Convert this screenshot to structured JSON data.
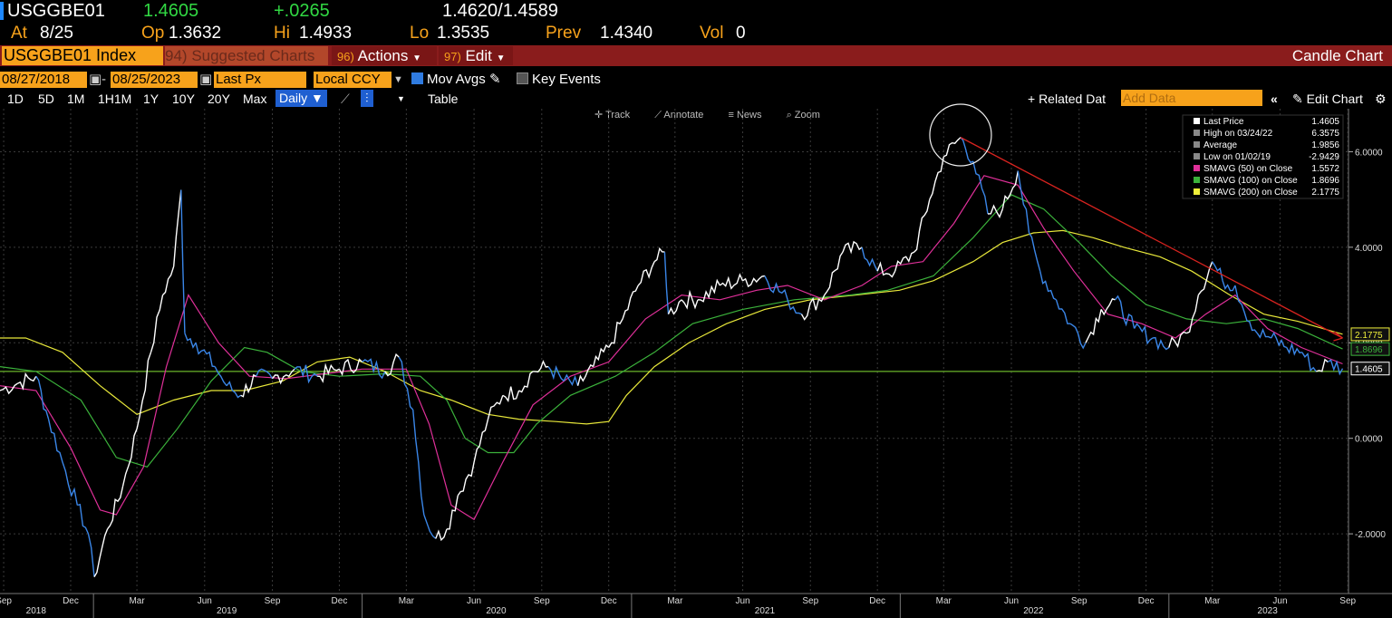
{
  "header": {
    "ticker": "USGGBE01",
    "last": "1.4605",
    "change": "+.0265",
    "bid_ask": "1.4620/1.4589",
    "at_label": "At",
    "at_value": "8/25",
    "open_label": "Op",
    "open_value": "1.3632",
    "high_label": "Hi",
    "high_value": "1.4933",
    "low_label": "Lo",
    "low_value": "1.3535",
    "prev_label": "Prev",
    "prev_value": "1.4340",
    "vol_label": "Vol",
    "vol_value": "0"
  },
  "toolbar": {
    "index_name": "USGGBE01 Index",
    "suggested_num": "94)",
    "suggested_label": "Suggested Charts",
    "actions_num": "96)",
    "actions_label": "Actions",
    "edit_num": "97)",
    "edit_label": "Edit",
    "chart_type_label": "Candle Chart"
  },
  "controls": {
    "start_date": "08/27/2018",
    "end_date": "08/25/2023",
    "separator": "-",
    "field": "Last Px",
    "currency": "Local CCY",
    "mov_avgs": "Mov Avgs",
    "key_events": "Key Events"
  },
  "ranges": {
    "items": [
      "1D",
      "5D",
      "1M",
      "1H1M",
      "1Y",
      "10Y",
      "20Y",
      "Max"
    ],
    "frequency": "Daily",
    "table": "Table",
    "related": "+ Related Dat",
    "add_data_placeholder": "Add Data",
    "edit_chart": "Edit Chart"
  },
  "chart_tools": {
    "track": "Track",
    "annotate": "Annotate",
    "news": "News",
    "zoom": "Zoom"
  },
  "legend": [
    {
      "label": "Last Price",
      "value": "1.4605",
      "color": "#ffffff"
    },
    {
      "label": "High on 03/24/22",
      "value": "6.3575",
      "color": "#888888"
    },
    {
      "label": "Average",
      "value": "1.9856",
      "color": "#888888"
    },
    {
      "label": "Low on 01/02/19",
      "value": "-2.9429",
      "color": "#888888"
    },
    {
      "label": "SMAVG (50)  on Close",
      "value": "1.5572",
      "color": "#e0309a"
    },
    {
      "label": "SMAVG (100)  on Close",
      "value": "1.8696",
      "color": "#3bb23b"
    },
    {
      "label": "SMAVG (200)  on Close",
      "value": "2.1775",
      "color": "#f0f03a"
    }
  ],
  "colors": {
    "price": "#ffffff",
    "price_down": "#3a86e8",
    "sma50": "#e0309a",
    "sma100": "#3bb23b",
    "sma200": "#e8e83a",
    "trendline": "#d8231f",
    "hline": "#6ab42a",
    "grid": "#3a3a3a",
    "toolbar_red": "#8a1c1c",
    "accent_orange": "#f7a21b"
  },
  "chart_data": {
    "type": "line",
    "title": "USGGBE01 Index",
    "y_ticks": [
      "6.0000",
      "4.0000",
      "2.0000",
      "0.0000",
      "-2.0000"
    ],
    "y_tick_values": [
      6,
      4,
      2,
      0,
      -2
    ],
    "ylim": [
      -3.25,
      6.9
    ],
    "xlim": [
      "2018-08-27",
      "2023-09-02"
    ],
    "x_months": [
      "Sep",
      "Dec",
      "Mar",
      "Jun",
      "Sep",
      "Dec",
      "Mar",
      "Jun",
      "Sep",
      "Dec",
      "Mar",
      "Jun",
      "Sep",
      "Dec",
      "Mar",
      "Jun",
      "Sep",
      "Dec",
      "Mar",
      "Jun",
      "Sep"
    ],
    "x_month_dates": [
      "2018-09-01",
      "2018-12-01",
      "2019-03-01",
      "2019-06-01",
      "2019-09-01",
      "2019-12-01",
      "2020-03-01",
      "2020-06-01",
      "2020-09-01",
      "2020-12-01",
      "2021-03-01",
      "2021-06-01",
      "2021-09-01",
      "2021-12-01",
      "2022-03-01",
      "2022-06-01",
      "2022-09-01",
      "2022-12-01",
      "2023-03-01",
      "2023-06-01",
      "2023-09-01"
    ],
    "x_years": [
      "2018",
      "2019",
      "2020",
      "2021",
      "2022",
      "2023"
    ],
    "x_year_dates": [
      "2018-10-15",
      "2019-07-01",
      "2020-07-01",
      "2021-07-01",
      "2022-07-01",
      "2023-05-15"
    ],
    "value_labels": [
      {
        "text": "2.1775",
        "value": 2.1775,
        "color": "#f0f03a"
      },
      {
        "text": "1.8696",
        "value": 1.8696,
        "color": "#3bb23b"
      },
      {
        "text": "1.4605",
        "value": 1.4605,
        "color": "#ffffff"
      }
    ],
    "horizontal_line": 1.4,
    "trendline": [
      [
        "2022-03-24",
        6.3
      ],
      [
        "2023-08-25",
        2.1
      ]
    ],
    "highlight_circle": [
      "2022-03-24",
      6.35
    ],
    "series": [
      {
        "name": "Last Price",
        "points": [
          [
            "2018-08-27",
            1.0
          ],
          [
            "2018-09-20",
            1.15
          ],
          [
            "2018-10-15",
            1.3
          ],
          [
            "2018-11-01",
            0.4
          ],
          [
            "2018-11-20",
            -0.5
          ],
          [
            "2018-12-10",
            -1.4
          ],
          [
            "2018-12-25",
            -2.0
          ],
          [
            "2019-01-02",
            -2.9
          ],
          [
            "2019-01-20",
            -1.9
          ],
          [
            "2019-02-10",
            -1.0
          ],
          [
            "2019-03-01",
            0.2
          ],
          [
            "2019-03-20",
            1.8
          ],
          [
            "2019-04-05",
            3.0
          ],
          [
            "2019-04-20",
            3.6
          ],
          [
            "2019-04-30",
            5.2
          ],
          [
            "2019-05-05",
            2.2
          ],
          [
            "2019-05-20",
            2.0
          ],
          [
            "2019-06-15",
            1.5
          ],
          [
            "2019-07-01",
            1.1
          ],
          [
            "2019-07-20",
            0.9
          ],
          [
            "2019-08-10",
            1.3
          ],
          [
            "2019-09-01",
            1.25
          ],
          [
            "2019-10-01",
            1.45
          ],
          [
            "2019-11-01",
            1.3
          ],
          [
            "2019-12-01",
            1.45
          ],
          [
            "2020-01-01",
            1.6
          ],
          [
            "2020-02-01",
            1.4
          ],
          [
            "2020-02-20",
            1.7
          ],
          [
            "2020-03-10",
            0.6
          ],
          [
            "2020-03-25",
            -1.6
          ],
          [
            "2020-04-10",
            -2.1
          ],
          [
            "2020-04-25",
            -1.9
          ],
          [
            "2020-05-10",
            -1.2
          ],
          [
            "2020-06-01",
            -0.5
          ],
          [
            "2020-06-20",
            0.4
          ],
          [
            "2020-07-10",
            0.9
          ],
          [
            "2020-08-01",
            1.0
          ],
          [
            "2020-08-20",
            1.4
          ],
          [
            "2020-09-10",
            1.5
          ],
          [
            "2020-10-01",
            1.2
          ],
          [
            "2020-10-20",
            1.1
          ],
          [
            "2020-11-10",
            1.5
          ],
          [
            "2020-12-01",
            1.9
          ],
          [
            "2020-12-20",
            2.5
          ],
          [
            "2021-01-10",
            3.2
          ],
          [
            "2021-02-01",
            3.7
          ],
          [
            "2021-02-15",
            3.9
          ],
          [
            "2021-02-20",
            2.6
          ],
          [
            "2021-03-10",
            2.9
          ],
          [
            "2021-04-01",
            2.9
          ],
          [
            "2021-05-01",
            3.2
          ],
          [
            "2021-06-01",
            3.3
          ],
          [
            "2021-07-01",
            3.4
          ],
          [
            "2021-08-01",
            2.9
          ],
          [
            "2021-08-20",
            2.6
          ],
          [
            "2021-09-20",
            3.0
          ],
          [
            "2021-10-15",
            3.9
          ],
          [
            "2021-11-10",
            4.0
          ],
          [
            "2021-12-01",
            3.5
          ],
          [
            "2021-12-25",
            3.5
          ],
          [
            "2022-01-20",
            3.9
          ],
          [
            "2022-02-10",
            5.0
          ],
          [
            "2022-03-01",
            5.9
          ],
          [
            "2022-03-24",
            6.3
          ],
          [
            "2022-04-10",
            5.8
          ],
          [
            "2022-04-30",
            4.7
          ],
          [
            "2022-05-20",
            4.8
          ],
          [
            "2022-06-10",
            5.6
          ],
          [
            "2022-06-25",
            4.3
          ],
          [
            "2022-07-10",
            3.5
          ],
          [
            "2022-08-01",
            2.9
          ],
          [
            "2022-08-20",
            2.4
          ],
          [
            "2022-09-10",
            2.0
          ],
          [
            "2022-10-01",
            2.7
          ],
          [
            "2022-10-20",
            2.9
          ],
          [
            "2022-11-15",
            2.3
          ],
          [
            "2022-12-10",
            2.1
          ],
          [
            "2023-01-01",
            1.9
          ],
          [
            "2023-01-25",
            2.2
          ],
          [
            "2023-02-10",
            3.0
          ],
          [
            "2023-03-01",
            3.7
          ],
          [
            "2023-03-15",
            3.3
          ],
          [
            "2023-04-01",
            3.2
          ],
          [
            "2023-04-10",
            2.8
          ],
          [
            "2023-05-01",
            2.2
          ],
          [
            "2023-05-20",
            2.1
          ],
          [
            "2023-06-10",
            1.9
          ],
          [
            "2023-07-01",
            1.8
          ],
          [
            "2023-07-20",
            1.4
          ],
          [
            "2023-08-05",
            1.6
          ],
          [
            "2023-08-25",
            1.46
          ]
        ]
      },
      {
        "name": "SMAVG (50)  on Close",
        "points": [
          [
            "2018-08-27",
            1.1
          ],
          [
            "2018-10-15",
            1.0
          ],
          [
            "2018-12-01",
            -0.2
          ],
          [
            "2019-01-10",
            -1.5
          ],
          [
            "2019-02-01",
            -1.6
          ],
          [
            "2019-03-10",
            -0.6
          ],
          [
            "2019-04-10",
            1.5
          ],
          [
            "2019-05-10",
            3.0
          ],
          [
            "2019-06-20",
            2.0
          ],
          [
            "2019-08-01",
            1.3
          ],
          [
            "2019-09-20",
            1.25
          ],
          [
            "2019-11-10",
            1.35
          ],
          [
            "2020-01-01",
            1.45
          ],
          [
            "2020-03-01",
            1.45
          ],
          [
            "2020-04-01",
            0.3
          ],
          [
            "2020-05-01",
            -1.4
          ],
          [
            "2020-06-01",
            -1.7
          ],
          [
            "2020-07-10",
            -0.5
          ],
          [
            "2020-08-20",
            0.7
          ],
          [
            "2020-10-10",
            1.3
          ],
          [
            "2020-12-01",
            1.6
          ],
          [
            "2021-01-20",
            2.5
          ],
          [
            "2021-03-10",
            3.0
          ],
          [
            "2021-05-01",
            2.9
          ],
          [
            "2021-06-20",
            3.1
          ],
          [
            "2021-08-01",
            3.2
          ],
          [
            "2021-09-20",
            2.9
          ],
          [
            "2021-11-10",
            3.2
          ],
          [
            "2021-12-20",
            3.6
          ],
          [
            "2022-02-01",
            3.7
          ],
          [
            "2022-03-15",
            4.5
          ],
          [
            "2022-04-25",
            5.5
          ],
          [
            "2022-06-10",
            5.3
          ],
          [
            "2022-07-15",
            4.4
          ],
          [
            "2022-08-25",
            3.5
          ],
          [
            "2022-10-10",
            2.6
          ],
          [
            "2022-11-25",
            2.4
          ],
          [
            "2023-01-10",
            2.1
          ],
          [
            "2023-02-20",
            2.6
          ],
          [
            "2023-04-01",
            3.0
          ],
          [
            "2023-05-15",
            2.3
          ],
          [
            "2023-06-30",
            1.9
          ],
          [
            "2023-08-25",
            1.56
          ]
        ]
      },
      {
        "name": "SMAVG (100)  on Close",
        "points": [
          [
            "2018-08-27",
            1.5
          ],
          [
            "2018-10-15",
            1.4
          ],
          [
            "2018-12-15",
            0.8
          ],
          [
            "2019-02-01",
            -0.4
          ],
          [
            "2019-03-15",
            -0.6
          ],
          [
            "2019-04-25",
            0.2
          ],
          [
            "2019-06-10",
            1.2
          ],
          [
            "2019-07-25",
            1.9
          ],
          [
            "2019-08-25",
            1.8
          ],
          [
            "2019-10-10",
            1.4
          ],
          [
            "2019-12-01",
            1.3
          ],
          [
            "2020-02-01",
            1.35
          ],
          [
            "2020-03-20",
            1.3
          ],
          [
            "2020-04-25",
            0.8
          ],
          [
            "2020-05-20",
            0.0
          ],
          [
            "2020-06-20",
            -0.3
          ],
          [
            "2020-07-25",
            -0.3
          ],
          [
            "2020-08-25",
            0.3
          ],
          [
            "2020-10-10",
            0.9
          ],
          [
            "2020-12-10",
            1.3
          ],
          [
            "2021-02-01",
            1.8
          ],
          [
            "2021-03-25",
            2.4
          ],
          [
            "2021-06-01",
            2.7
          ],
          [
            "2021-08-10",
            2.9
          ],
          [
            "2021-10-25",
            3.0
          ],
          [
            "2021-12-15",
            3.1
          ],
          [
            "2022-02-15",
            3.4
          ],
          [
            "2022-04-10",
            4.2
          ],
          [
            "2022-06-01",
            5.1
          ],
          [
            "2022-07-15",
            4.8
          ],
          [
            "2022-09-01",
            4.1
          ],
          [
            "2022-10-15",
            3.4
          ],
          [
            "2022-12-01",
            2.8
          ],
          [
            "2023-01-25",
            2.5
          ],
          [
            "2023-03-20",
            2.4
          ],
          [
            "2023-05-10",
            2.5
          ],
          [
            "2023-06-25",
            2.3
          ],
          [
            "2023-08-25",
            1.87
          ]
        ]
      },
      {
        "name": "SMAVG (200)  on Close",
        "points": [
          [
            "2018-08-27",
            2.1
          ],
          [
            "2018-10-01",
            2.1
          ],
          [
            "2018-11-20",
            1.8
          ],
          [
            "2019-01-10",
            1.1
          ],
          [
            "2019-03-01",
            0.5
          ],
          [
            "2019-04-20",
            0.8
          ],
          [
            "2019-06-10",
            1.0
          ],
          [
            "2019-07-25",
            1.0
          ],
          [
            "2019-09-15",
            1.2
          ],
          [
            "2019-11-01",
            1.6
          ],
          [
            "2019-12-15",
            1.7
          ],
          [
            "2020-02-01",
            1.4
          ],
          [
            "2020-03-20",
            1.0
          ],
          [
            "2020-05-01",
            0.8
          ],
          [
            "2020-06-20",
            0.5
          ],
          [
            "2020-08-01",
            0.4
          ],
          [
            "2020-09-20",
            0.35
          ],
          [
            "2020-11-01",
            0.3
          ],
          [
            "2020-12-01",
            0.35
          ],
          [
            "2020-12-25",
            0.9
          ],
          [
            "2021-02-01",
            1.5
          ],
          [
            "2021-03-20",
            2.0
          ],
          [
            "2021-05-10",
            2.4
          ],
          [
            "2021-07-01",
            2.7
          ],
          [
            "2021-09-01",
            2.9
          ],
          [
            "2021-11-01",
            3.0
          ],
          [
            "2021-12-31",
            3.1
          ],
          [
            "2022-02-15",
            3.3
          ],
          [
            "2022-04-10",
            3.7
          ],
          [
            "2022-05-20",
            4.1
          ],
          [
            "2022-07-01",
            4.3
          ],
          [
            "2022-08-10",
            4.35
          ],
          [
            "2022-09-20",
            4.2
          ],
          [
            "2022-11-01",
            4.0
          ],
          [
            "2022-12-20",
            3.8
          ],
          [
            "2023-02-01",
            3.5
          ],
          [
            "2023-03-25",
            3.0
          ],
          [
            "2023-05-10",
            2.6
          ],
          [
            "2023-06-25",
            2.45
          ],
          [
            "2023-08-25",
            2.18
          ]
        ]
      }
    ]
  }
}
